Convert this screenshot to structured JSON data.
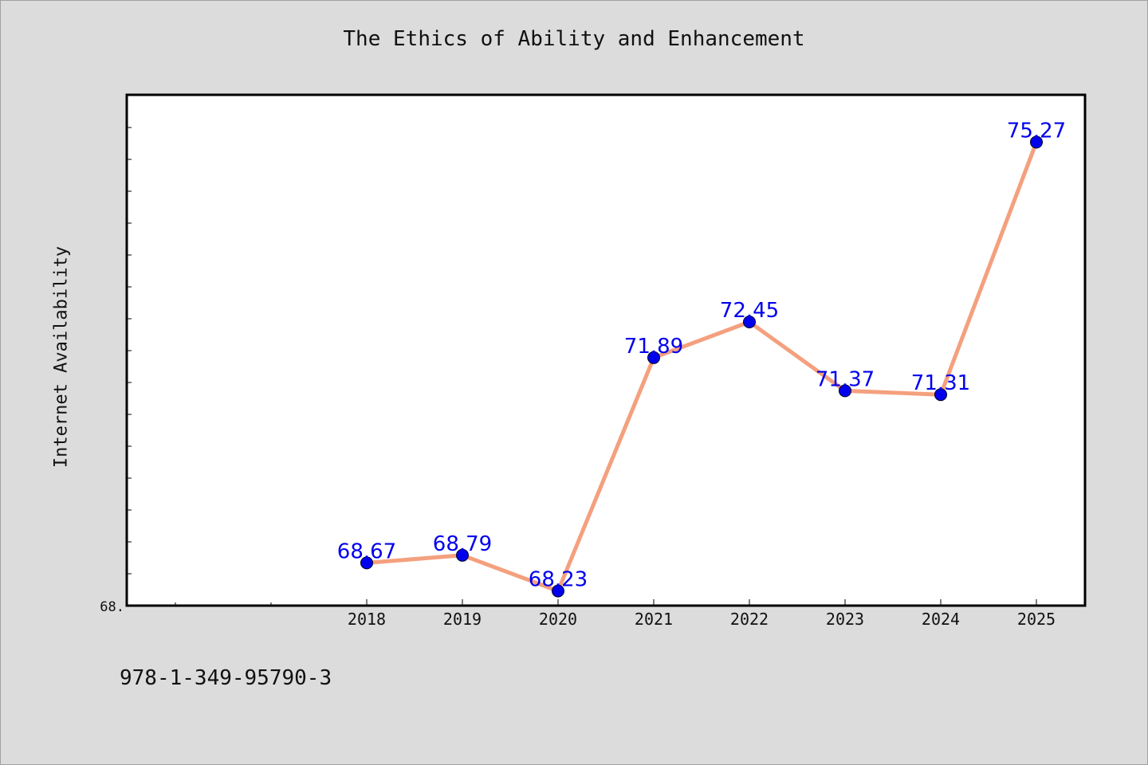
{
  "chart_data": {
    "type": "line",
    "title": "The Ethics of Ability and Enhancement",
    "ylabel": "Internet Availability",
    "xlabel": "",
    "footer": "978-1-349-95790-3",
    "y_tick_label": "68.",
    "y_tick_value": 68.0,
    "ylim": [
      68.0,
      76.0
    ],
    "x": [
      "2018",
      "2019",
      "2020",
      "2021",
      "2022",
      "2023",
      "2024",
      "2025"
    ],
    "x_index_range": [
      0,
      10
    ],
    "x_start_index": 2.5,
    "values": [
      68.67,
      68.79,
      68.23,
      71.89,
      72.45,
      71.37,
      71.31,
      75.27
    ],
    "data_labels": [
      "68.67",
      "68.79",
      "68.23",
      "71.89",
      "72.45",
      "71.37",
      "71.31",
      "75.27"
    ],
    "line_color": "#f4a07e",
    "marker_color": "#0000ee",
    "label_color": "#0000ee",
    "grid": false,
    "legend": "none"
  }
}
